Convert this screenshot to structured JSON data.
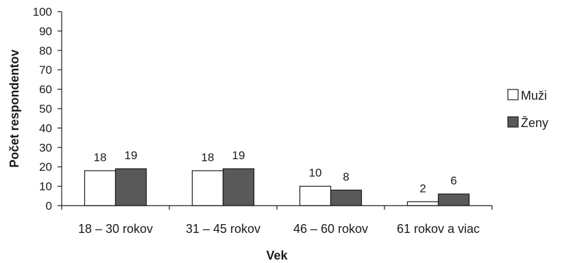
{
  "chart_data": {
    "type": "bar",
    "categories": [
      "18 – 30 rokov",
      "31 – 45 rokov",
      "46 – 60 rokov",
      "61 rokov a viac"
    ],
    "series": [
      {
        "name": "Muži",
        "values": [
          18,
          18,
          10,
          2
        ],
        "color": "#ffffff"
      },
      {
        "name": "Ženy",
        "values": [
          19,
          19,
          8,
          6
        ],
        "color": "#595959"
      }
    ],
    "xlabel": "Vek",
    "ylabel": "Počet respondentov",
    "ylim": [
      0,
      100
    ],
    "yticks": [
      0,
      10,
      20,
      30,
      40,
      50,
      60,
      70,
      80,
      90,
      100
    ],
    "grid": false,
    "legend_position": "right"
  }
}
